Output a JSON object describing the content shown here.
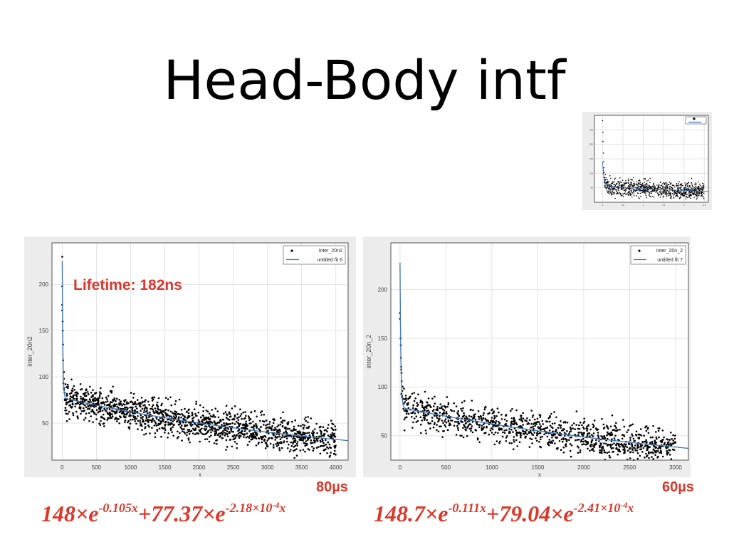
{
  "slide": {
    "title": "Head-Body intf"
  },
  "annotations": {
    "lifetime": "Lifetime: 182ns",
    "duration_left": "80µs",
    "duration_right": "60µs"
  },
  "formulas": {
    "left": {
      "a": "148",
      "k1": "-0.105x",
      "b": "+77.37",
      "k2": "-2.18×10",
      "exp": "-4",
      "x": "x"
    },
    "right": {
      "a": "148.7",
      "k1": "-0.111x",
      "b": "+79.04",
      "k2": "-2.41×10",
      "exp": "-4",
      "x": "x"
    }
  },
  "colors": {
    "accent": "#d9382b",
    "fit_line": "#3a75b8",
    "points": "#000000",
    "panel_bg": "#ececec"
  },
  "chart_data": [
    {
      "type": "scatter",
      "id": "left",
      "xlabel": "x",
      "ylabel": "inter_20n2",
      "xlim": [
        -150,
        4180
      ],
      "ylim": [
        10,
        245
      ],
      "xticks": [
        0,
        500,
        1000,
        1500,
        2000,
        2500,
        3000,
        3500,
        4000
      ],
      "yticks": [
        50,
        100,
        150,
        200
      ],
      "grid": true,
      "legend_position": "top-right",
      "legend": [
        "inter_20n2",
        "untitled fit 6"
      ],
      "series": [
        {
          "name": "inter_20n2",
          "kind": "points",
          "x_range": [
            0,
            4000
          ],
          "spread": 9,
          "early_points": [
            [
              0,
              230
            ],
            [
              0,
              198
            ],
            [
              0,
              178
            ],
            [
              0,
              172
            ],
            [
              6,
              160
            ],
            [
              8,
              150
            ],
            [
              12,
              135
            ],
            [
              14,
              118
            ],
            [
              20,
              105
            ],
            [
              25,
              98
            ]
          ]
        },
        {
          "name": "untitled fit 6",
          "kind": "fit",
          "a": 148,
          "k1": 0.105,
          "b": 77.37,
          "k2": 0.000218,
          "x_range": [
            0,
            4180
          ]
        }
      ]
    },
    {
      "type": "scatter",
      "id": "right",
      "xlabel": "x",
      "ylabel": "inter_20n_2",
      "xlim": [
        -100,
        3140
      ],
      "ylim": [
        25,
        248
      ],
      "xticks": [
        0,
        500,
        1000,
        1500,
        2000,
        2500,
        3000
      ],
      "yticks": [
        50,
        100,
        150,
        200
      ],
      "grid": true,
      "legend_position": "top-right",
      "legend": [
        "inter_20n_2",
        "untitled fit 7"
      ],
      "series": [
        {
          "name": "inter_20n_2",
          "kind": "points",
          "x_range": [
            0,
            3000
          ],
          "spread": 9,
          "early_points": [
            [
              0,
              176
            ],
            [
              0,
              170
            ],
            [
              6,
              150
            ],
            [
              8,
              143
            ],
            [
              10,
              130
            ],
            [
              14,
              118
            ],
            [
              18,
              106
            ],
            [
              24,
              96
            ]
          ]
        },
        {
          "name": "untitled fit 7",
          "kind": "fit",
          "a": 148.7,
          "k1": 0.111,
          "b": 79.04,
          "k2": 0.000241,
          "x_range": [
            0,
            3140
          ]
        }
      ]
    },
    {
      "type": "scatter",
      "id": "thumbnail",
      "xlim": [
        -0.2,
        2.6
      ],
      "ylim": [
        0,
        300
      ],
      "xticks": [
        0,
        0.5,
        1,
        1.5,
        2,
        2.5
      ],
      "yticks": [
        50,
        100,
        150,
        200,
        250
      ],
      "grid": true,
      "legend_position": "top-right",
      "series": [
        {
          "kind": "points",
          "x_range": [
            0,
            2.5
          ],
          "spread": 14,
          "early_points": [
            [
              0,
              282
            ],
            [
              0.01,
              242
            ],
            [
              0.01,
              210
            ],
            [
              0.02,
              170
            ],
            [
              0.02,
              140
            ]
          ]
        },
        {
          "kind": "fit",
          "a": 85,
          "k1": 30,
          "b": 55,
          "k2": 0.15,
          "x_range": [
            0,
            2.6
          ]
        }
      ]
    }
  ]
}
